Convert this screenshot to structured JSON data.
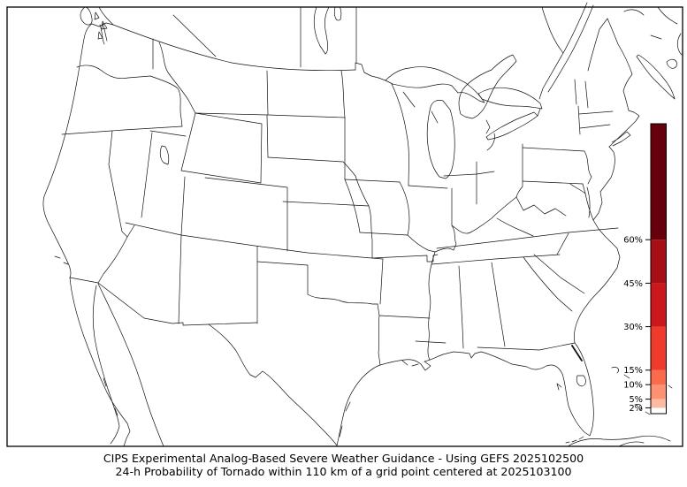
{
  "caption": {
    "line1": "CIPS Experimental Analog-Based Severe Weather Guidance - Using GEFS 2025102500",
    "line2": "24-h Probability of Tornado within 110 km of a grid point centered at 2025103100"
  },
  "colorbar": {
    "unit": "%",
    "min": 0,
    "max": 100,
    "outline_color": "#000000",
    "ticks": [
      {
        "value": 2,
        "label": "2%"
      },
      {
        "value": 5,
        "label": "5%"
      },
      {
        "value": 10,
        "label": "10%"
      },
      {
        "value": 15,
        "label": "15%"
      },
      {
        "value": 30,
        "label": "30%"
      },
      {
        "value": 45,
        "label": "45%"
      },
      {
        "value": 60,
        "label": "60%"
      }
    ],
    "segments": [
      {
        "from": 0,
        "to": 2,
        "color": "#ffffff"
      },
      {
        "from": 2,
        "to": 5,
        "color": "#fcbba1"
      },
      {
        "from": 5,
        "to": 10,
        "color": "#fc9272"
      },
      {
        "from": 10,
        "to": 15,
        "color": "#fb6a4a"
      },
      {
        "from": 15,
        "to": 30,
        "color": "#ef3b2c"
      },
      {
        "from": 30,
        "to": 45,
        "color": "#cb181d"
      },
      {
        "from": 45,
        "to": 60,
        "color": "#a50f15"
      },
      {
        "from": 60,
        "to": 100,
        "color": "#67000d"
      }
    ]
  },
  "chart_data": {
    "type": "heatmap",
    "region": "CONUS (United States) map with state borders, Lambert-style projection",
    "field": "24-h tornado probability within 110 km of a grid point (%)",
    "scale_ticks": [
      2,
      5,
      10,
      15,
      30,
      45,
      60
    ],
    "scale_range": [
      0,
      100
    ],
    "legend_position": "right vertical colorbar",
    "values_shown": "no shaded probability areas visible on map (field below lowest 2% contour everywhere)"
  }
}
